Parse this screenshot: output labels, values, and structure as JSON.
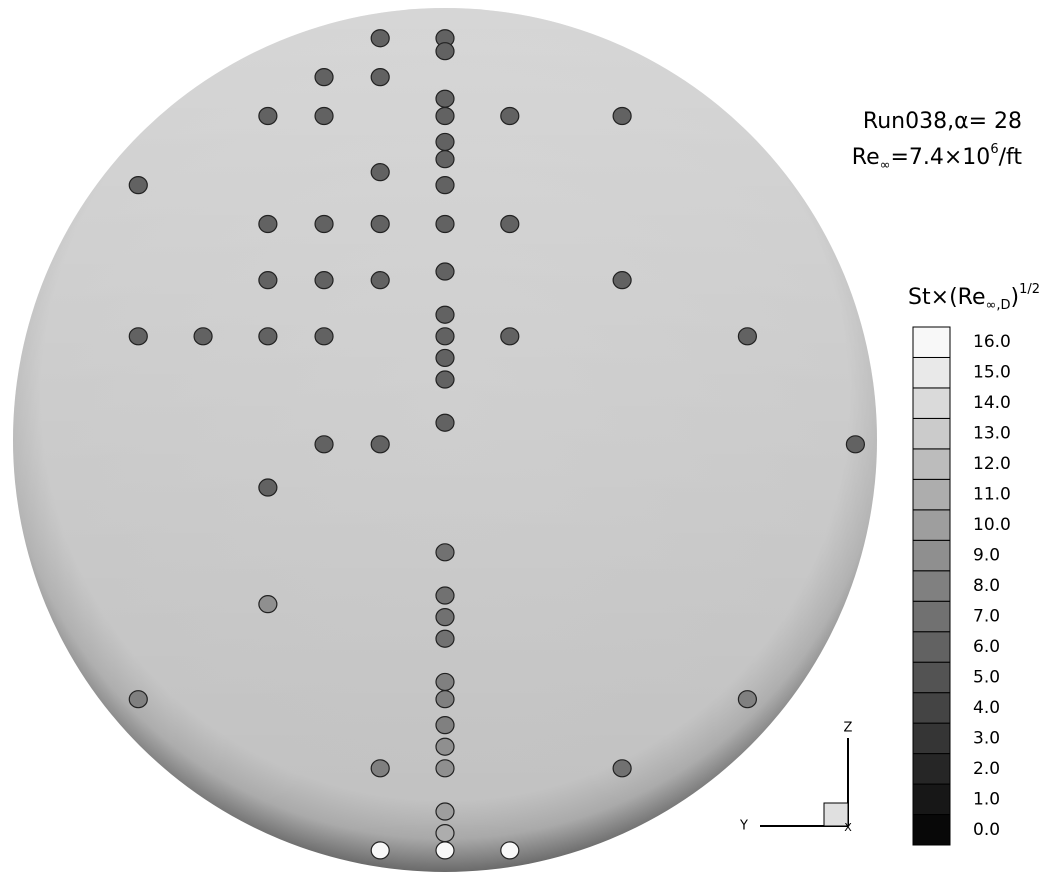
{
  "chart_data": {
    "type": "scatter",
    "title": [
      "Run038,α= 28",
      [
        "Re",
        "∞",
        "=7.4×10",
        "6",
        "/ft"
      ]
    ],
    "colorbar_label": [
      "St×(Re",
      "∞,D",
      ")",
      "1/2"
    ],
    "x_label": "Y",
    "y_label": "Z",
    "origin_label": "X",
    "xlim": [
      -1,
      1
    ],
    "ylim": [
      -1,
      1
    ],
    "clim": [
      -0.5,
      16.5
    ],
    "cticks": [
      {
        "value": 0,
        "label": "0.0"
      },
      {
        "value": 1,
        "label": "1.0"
      },
      {
        "value": 2,
        "label": "2.0"
      },
      {
        "value": 3,
        "label": "3.0"
      },
      {
        "value": 4,
        "label": "4.0"
      },
      {
        "value": 5,
        "label": "5.0"
      },
      {
        "value": 6,
        "label": "6.0"
      },
      {
        "value": 7,
        "label": "7.0"
      },
      {
        "value": 8,
        "label": "8.0"
      },
      {
        "value": 9,
        "label": "9.0"
      },
      {
        "value": 10,
        "label": "10.0"
      },
      {
        "value": 11,
        "label": "11.0"
      },
      {
        "value": 12,
        "label": "12.0"
      },
      {
        "value": 13,
        "label": "13.0"
      },
      {
        "value": 14,
        "label": "14.0"
      },
      {
        "value": 15,
        "label": "15.0"
      },
      {
        "value": 16,
        "label": "16.0"
      }
    ],
    "x": [
      -0.15,
      0,
      0,
      -0.28,
      -0.15,
      0,
      -0.41,
      -0.28,
      0,
      0.15,
      0.41,
      0,
      0,
      -0.15,
      -0.71,
      0,
      -0.41,
      -0.28,
      -0.15,
      0,
      0.15,
      0,
      -0.41,
      -0.28,
      -0.15,
      0.41,
      0,
      -0.71,
      -0.56,
      -0.41,
      -0.28,
      0,
      0.15,
      0.7,
      0,
      0,
      0,
      -0.28,
      -0.15,
      0.95,
      -0.41,
      0,
      0,
      -0.41,
      0,
      0,
      0,
      -0.71,
      0,
      0.7,
      0,
      0,
      -0.15,
      0,
      0.41,
      0,
      0,
      -0.15,
      0,
      0.15
    ],
    "y": [
      0.93,
      0.93,
      0.9,
      0.84,
      0.84,
      0.79,
      0.75,
      0.75,
      0.75,
      0.75,
      0.75,
      0.69,
      0.65,
      0.62,
      0.59,
      0.59,
      0.5,
      0.5,
      0.5,
      0.5,
      0.5,
      0.39,
      0.37,
      0.37,
      0.37,
      0.37,
      0.29,
      0.24,
      0.24,
      0.24,
      0.24,
      0.24,
      0.24,
      0.24,
      0.19,
      0.14,
      0.04,
      -0.01,
      -0.01,
      -0.01,
      -0.11,
      -0.26,
      -0.36,
      -0.38,
      -0.41,
      -0.46,
      -0.56,
      -0.6,
      -0.6,
      -0.6,
      -0.66,
      -0.71,
      -0.76,
      -0.76,
      -0.76,
      -0.86,
      -0.91,
      -0.95,
      -0.95,
      -0.95
    ],
    "values": [
      6,
      6,
      6,
      6,
      6,
      6,
      6,
      6,
      6,
      6,
      6,
      6,
      6,
      6,
      6,
      6,
      6,
      6,
      6,
      6,
      6,
      6,
      6,
      6,
      6,
      6,
      6,
      6,
      6,
      6,
      6,
      6,
      6,
      6,
      6,
      6,
      6,
      6,
      6,
      6,
      6,
      7,
      7,
      9,
      7,
      7,
      8,
      8,
      8,
      8,
      8,
      9,
      8,
      9,
      7,
      10,
      11,
      16,
      16,
      16
    ]
  }
}
